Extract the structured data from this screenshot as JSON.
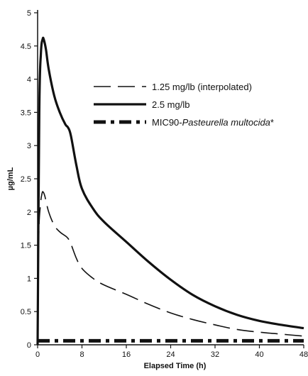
{
  "chart_data": {
    "type": "line",
    "xlabel": "Elapsed Time (h)",
    "ylabel": "µg/mL",
    "xlim": [
      0,
      48
    ],
    "ylim": [
      0,
      5
    ],
    "xticks": [
      "0",
      "8",
      "16",
      "24",
      "32",
      "40",
      "48"
    ],
    "yticks": [
      "0",
      "0.5",
      "1",
      "1.5",
      "2",
      "2.5",
      "3",
      "3.5",
      "4",
      "4.5",
      "5"
    ],
    "grid": false,
    "legend_position": "upper-right",
    "series": [
      {
        "name": "1.25 mg/lb (interpolated)",
        "style": "dashed",
        "x": [
          0,
          0.2,
          0.5,
          0.8,
          1.0,
          1.3,
          2,
          3,
          4,
          5,
          5.5,
          6,
          7,
          8,
          10,
          12,
          16,
          20,
          24,
          28,
          32,
          36,
          40,
          44,
          48
        ],
        "y": [
          0,
          1.6,
          2.1,
          2.28,
          2.3,
          2.24,
          2.0,
          1.8,
          1.7,
          1.64,
          1.6,
          1.52,
          1.3,
          1.15,
          1.0,
          0.9,
          0.76,
          0.61,
          0.48,
          0.38,
          0.3,
          0.23,
          0.19,
          0.16,
          0.13
        ]
      },
      {
        "name": "2.5 mg/lb",
        "style": "solid",
        "x": [
          0,
          0.3,
          0.6,
          0.9,
          1.1,
          1.5,
          2,
          3,
          4,
          5,
          5.5,
          6,
          7,
          8,
          10,
          12,
          16,
          20,
          24,
          28,
          32,
          36,
          40,
          44,
          48
        ],
        "y": [
          0,
          3.5,
          4.4,
          4.6,
          4.6,
          4.45,
          4.15,
          3.75,
          3.5,
          3.32,
          3.27,
          3.15,
          2.7,
          2.35,
          2.05,
          1.85,
          1.55,
          1.25,
          0.98,
          0.75,
          0.58,
          0.45,
          0.36,
          0.3,
          0.25
        ]
      },
      {
        "name": "MIC90-Pasteurella multocida*",
        "style": "dashdot",
        "x": [
          0,
          48
        ],
        "y": [
          0.06,
          0.06
        ]
      }
    ]
  },
  "legend": {
    "entries": [
      {
        "label": "1.25 mg/lb (interpolated)",
        "style": "dashed"
      },
      {
        "label": "2.5 mg/lb",
        "style": "solid"
      },
      {
        "label_prefix": "MIC90-",
        "label_italic": "Pasteurella multocida",
        "label_suffix": "*",
        "style": "dashdot"
      }
    ]
  },
  "colors": {
    "line": "#111111",
    "background": "#ffffff"
  }
}
